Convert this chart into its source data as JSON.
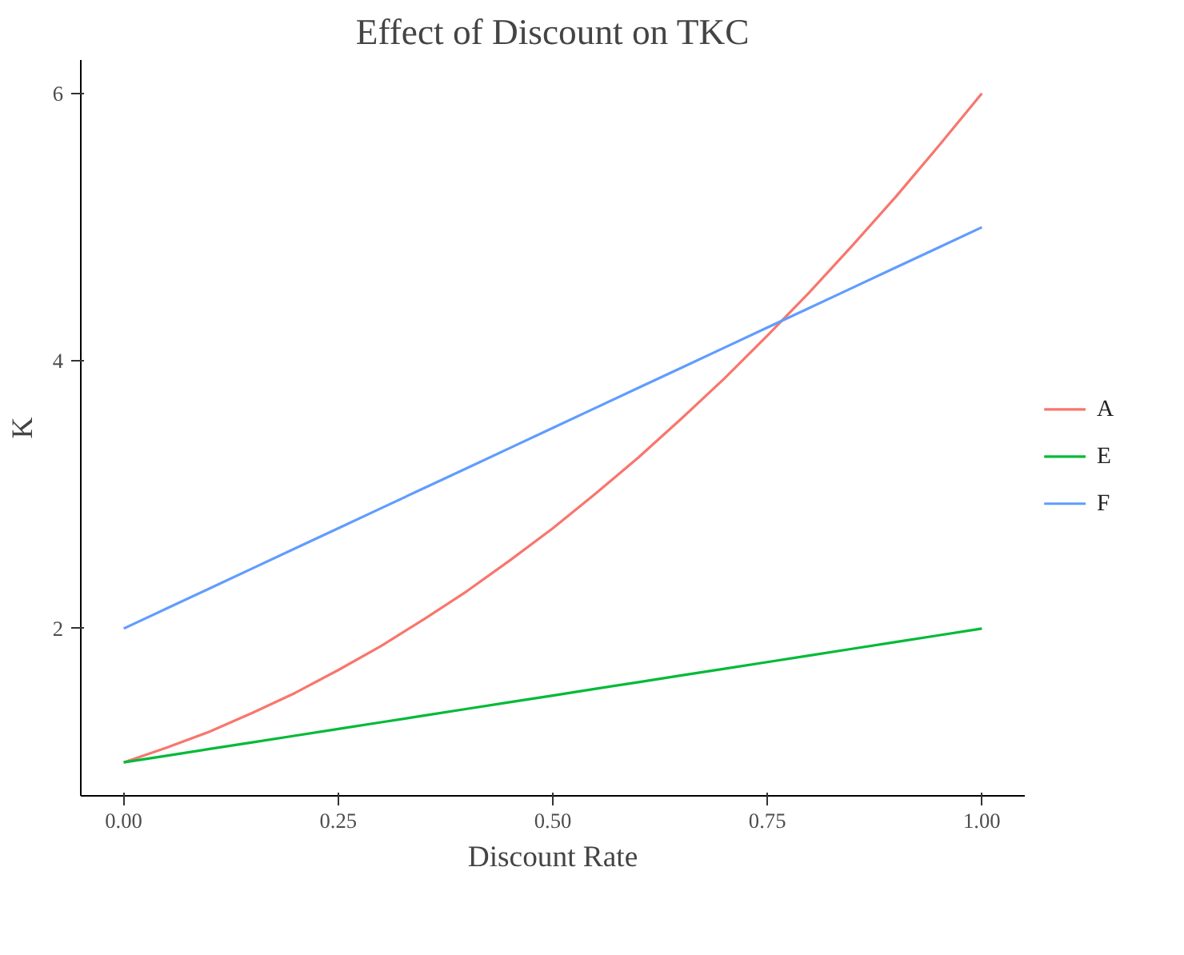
{
  "chart_data": {
    "type": "line",
    "title": "Effect of Discount on TKC",
    "xlabel": "Discount Rate",
    "ylabel": "K",
    "x": [
      0,
      0.05,
      0.1,
      0.15,
      0.2,
      0.25,
      0.3,
      0.35,
      0.4,
      0.45,
      0.5,
      0.55,
      0.6,
      0.65,
      0.7,
      0.75,
      0.8,
      0.85,
      0.9,
      0.95,
      1
    ],
    "series": [
      {
        "name": "A",
        "color": "#f8766d",
        "values": [
          1,
          1.11,
          1.23,
          1.37,
          1.52,
          1.69,
          1.87,
          2.07,
          2.28,
          2.51,
          2.75,
          3.01,
          3.28,
          3.57,
          3.87,
          4.19,
          4.52,
          4.87,
          5.23,
          5.61,
          6
        ]
      },
      {
        "name": "E",
        "color": "#00ba38",
        "values": [
          1,
          1.05,
          1.1,
          1.15,
          1.2,
          1.25,
          1.3,
          1.35,
          1.4,
          1.45,
          1.5,
          1.55,
          1.6,
          1.65,
          1.7,
          1.75,
          1.8,
          1.85,
          1.9,
          1.95,
          2
        ]
      },
      {
        "name": "F",
        "color": "#619cff",
        "values": [
          2,
          2.15,
          2.3,
          2.45,
          2.6,
          2.75,
          2.9,
          3.05,
          3.2,
          3.35,
          3.5,
          3.65,
          3.8,
          3.95,
          4.1,
          4.25,
          4.4,
          4.55,
          4.7,
          4.85,
          5
        ]
      }
    ],
    "xlim": [
      -0.05,
      1.05
    ],
    "ylim": [
      0.75,
      6.25
    ],
    "xticks": [
      {
        "value": 0,
        "label": "0.00"
      },
      {
        "value": 0.25,
        "label": "0.25"
      },
      {
        "value": 0.5,
        "label": "0.50"
      },
      {
        "value": 0.75,
        "label": "0.75"
      },
      {
        "value": 1,
        "label": "1.00"
      }
    ],
    "yticks": [
      2,
      4,
      6
    ],
    "grid": false,
    "legend": "right",
    "marker": "none",
    "line_style": "solid"
  }
}
